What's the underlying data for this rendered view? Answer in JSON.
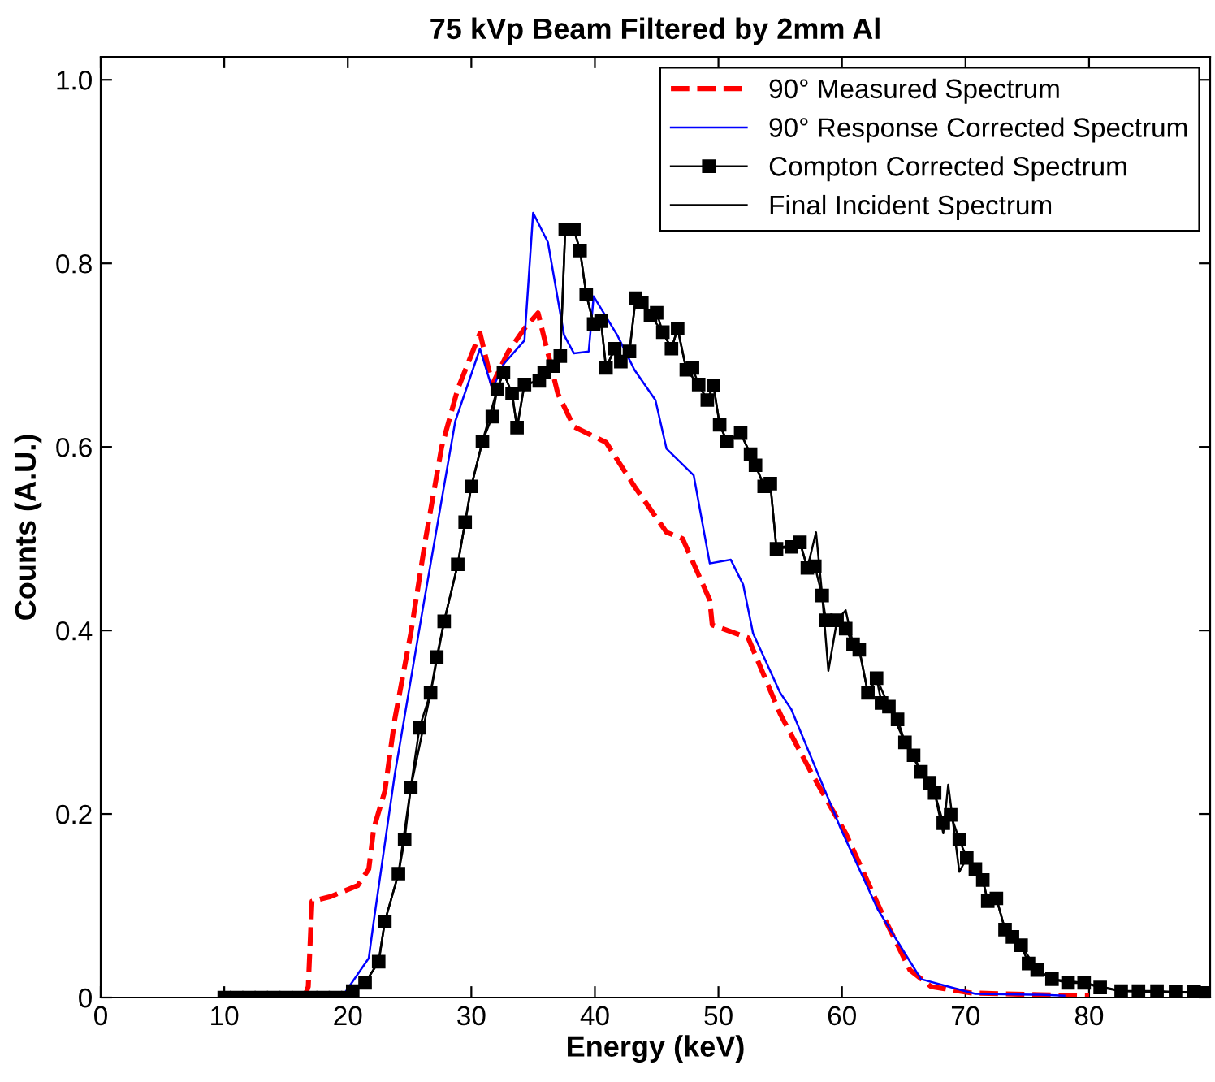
{
  "chart_data": {
    "type": "line",
    "title": "75 kVp Beam Filtered by 2mm Al",
    "xlabel": "Energy (keV)",
    "ylabel": "Counts (A.U.)",
    "xlim": [
      0,
      89.8
    ],
    "ylim": [
      0,
      1.025
    ],
    "xticks": [
      0,
      10,
      20,
      30,
      40,
      50,
      60,
      70,
      80
    ],
    "yticks": [
      0,
      {
        "value": 0.2,
        "label": "0.2"
      },
      {
        "value": 0.4,
        "label": "0.4"
      },
      {
        "value": 0.6,
        "label": "0.6"
      },
      {
        "value": 0.8,
        "label": "0.8"
      },
      {
        "value": 1.0,
        "label": "1.0"
      }
    ],
    "grid": false,
    "legend": "top right",
    "series": [
      {
        "name": "90° Measured Spectrum",
        "color": "#ff0000",
        "line_style": "dashed",
        "marker": "none",
        "x": [
          16.5,
          16.8,
          17.1,
          18.6,
          20.8,
          21.7,
          22.1,
          23.0,
          23.8,
          25.1,
          26.3,
          27.6,
          28.9,
          30.7,
          31.7,
          33.0,
          34.3,
          35.4,
          37.0,
          38.3,
          40.9,
          43.2,
          45.8,
          47.1,
          49.3,
          49.5,
          52.4,
          55.0,
          57.6,
          60.3,
          63.3,
          65.5,
          67.2,
          70.4,
          76.0,
          80.0
        ],
        "values": [
          0,
          0.012,
          0.105,
          0.11,
          0.122,
          0.14,
          0.184,
          0.225,
          0.303,
          0.397,
          0.5,
          0.6,
          0.663,
          0.724,
          0.668,
          0.704,
          0.729,
          0.746,
          0.658,
          0.622,
          0.605,
          0.557,
          0.507,
          0.5,
          0.433,
          0.406,
          0.392,
          0.309,
          0.243,
          0.179,
          0.09,
          0.03,
          0.012,
          0.005,
          0.003,
          0.002
        ]
      },
      {
        "name": "90° Response Corrected Spectrum",
        "color": "#0000ff",
        "line_style": "solid",
        "marker": "none",
        "x": [
          19.5,
          21.7,
          22.1,
          23.8,
          26.0,
          28.7,
          30.7,
          31.7,
          32.6,
          34.3,
          35.0,
          36.2,
          37.5,
          38.3,
          39.5,
          39.9,
          41.8,
          43.2,
          44.9,
          45.8,
          48.0,
          49.3,
          51.0,
          52.0,
          52.8,
          55.0,
          55.9,
          59.9,
          62.9,
          65.1,
          66.4,
          68.6,
          70.8,
          76.0,
          78.0
        ],
        "values": [
          0,
          0.043,
          0.083,
          0.243,
          0.418,
          0.628,
          0.707,
          0.663,
          0.69,
          0.716,
          0.855,
          0.823,
          0.722,
          0.702,
          0.704,
          0.764,
          0.722,
          0.684,
          0.651,
          0.598,
          0.569,
          0.473,
          0.477,
          0.45,
          0.397,
          0.332,
          0.314,
          0.184,
          0.096,
          0.048,
          0.02,
          0.012,
          0.004,
          0.003,
          0.002
        ]
      },
      {
        "name": "Compton Corrected Spectrum",
        "color": "#000000",
        "line_style": "solid",
        "marker": "square",
        "x": [
          10,
          11,
          12,
          13,
          14,
          15,
          16,
          17,
          18,
          19,
          20.0,
          20.4,
          21.4,
          22.5,
          23.0,
          24.1,
          24.6,
          25.1,
          25.8,
          26.7,
          27.2,
          27.8,
          28.9,
          29.5,
          30.0,
          30.9,
          31.7,
          32.1,
          32.6,
          33.3,
          33.7,
          34.3,
          35.5,
          35.9,
          36.6,
          37.2,
          37.6,
          38.3,
          38.8,
          39.3,
          39.9,
          40.5,
          40.9,
          41.6,
          42.1,
          42.8,
          43.3,
          43.8,
          44.5,
          45.0,
          45.5,
          46.2,
          46.7,
          47.4,
          47.9,
          48.4,
          49.1,
          49.6,
          50.1,
          50.7,
          51.8,
          52.6,
          53.0,
          53.7,
          54.2,
          54.7,
          55.9,
          56.6,
          57.2,
          57.8,
          58.4,
          58.7,
          59.6,
          60.3,
          60.9,
          61.4,
          62.1,
          62.8,
          63.2,
          63.8,
          64.5,
          65.1,
          65.8,
          66.4,
          67.1,
          67.5,
          68.2,
          68.8,
          69.5,
          70.1,
          70.8,
          71.4,
          71.8,
          72.5,
          73.2,
          73.8,
          74.5,
          75.1,
          75.8,
          77.0,
          78.3,
          79.6,
          80.9,
          82.6,
          84.0,
          85.5,
          87.0,
          88.5,
          89.5
        ],
        "values": [
          0,
          0,
          0,
          0,
          0,
          0,
          0,
          0,
          0,
          0,
          0,
          0.007,
          0.016,
          0.039,
          0.083,
          0.135,
          0.172,
          0.229,
          0.294,
          0.332,
          0.371,
          0.41,
          0.472,
          0.518,
          0.557,
          0.606,
          0.633,
          0.663,
          0.681,
          0.658,
          0.621,
          0.668,
          0.672,
          0.681,
          0.688,
          0.699,
          0.837,
          0.837,
          0.814,
          0.766,
          0.734,
          0.737,
          0.686,
          0.707,
          0.693,
          0.704,
          0.762,
          0.757,
          0.743,
          0.746,
          0.725,
          0.707,
          0.729,
          0.684,
          0.686,
          0.668,
          0.651,
          0.667,
          0.624,
          0.606,
          0.615,
          0.592,
          0.58,
          0.557,
          0.56,
          0.489,
          0.491,
          0.496,
          0.468,
          0.47,
          0.438,
          0.411,
          0.411,
          0.402,
          0.385,
          0.379,
          0.332,
          0.348,
          0.321,
          0.317,
          0.303,
          0.278,
          0.264,
          0.246,
          0.234,
          0.223,
          0.19,
          0.199,
          0.172,
          0.152,
          0.14,
          0.128,
          0.105,
          0.108,
          0.074,
          0.066,
          0.057,
          0.037,
          0.03,
          0.02,
          0.016,
          0.016,
          0.011,
          0.007,
          0.007,
          0.007,
          0.006,
          0.006,
          0.005
        ]
      },
      {
        "name": "Final Incident Spectrum",
        "color": "#000000",
        "line_style": "solid",
        "marker": "none",
        "x": [
          10,
          20.0,
          20.4,
          21.4,
          22.5,
          23.0,
          24.1,
          25.1,
          26.7,
          27.8,
          28.9,
          30.0,
          30.9,
          32.1,
          32.6,
          33.3,
          33.7,
          34.3,
          35.5,
          37.2,
          37.6,
          38.3,
          38.8,
          39.3,
          39.9,
          40.5,
          40.9,
          41.6,
          42.1,
          42.8,
          43.3,
          44.5,
          45.5,
          46.2,
          46.7,
          47.4,
          48.4,
          49.1,
          49.6,
          50.1,
          50.7,
          51.8,
          53.0,
          53.7,
          54.2,
          54.7,
          56.6,
          57.2,
          57.9,
          58.4,
          58.9,
          59.6,
          60.3,
          60.9,
          61.4,
          62.1,
          62.8,
          63.8,
          65.1,
          66.4,
          67.5,
          68.2,
          68.6,
          69.5,
          70.1,
          71.4,
          71.8,
          72.5,
          73.2,
          74.5,
          75.8,
          77.0,
          79.6,
          82.6,
          85.5,
          89.5
        ],
        "values": [
          0,
          0,
          0.007,
          0.016,
          0.039,
          0.083,
          0.135,
          0.229,
          0.332,
          0.41,
          0.472,
          0.557,
          0.606,
          0.663,
          0.681,
          0.658,
          0.621,
          0.668,
          0.672,
          0.699,
          0.837,
          0.837,
          0.814,
          0.766,
          0.734,
          0.737,
          0.686,
          0.707,
          0.693,
          0.704,
          0.762,
          0.743,
          0.725,
          0.707,
          0.729,
          0.684,
          0.668,
          0.651,
          0.667,
          0.624,
          0.606,
          0.615,
          0.58,
          0.557,
          0.56,
          0.489,
          0.496,
          0.468,
          0.507,
          0.438,
          0.356,
          0.411,
          0.422,
          0.385,
          0.379,
          0.332,
          0.348,
          0.317,
          0.278,
          0.246,
          0.223,
          0.179,
          0.232,
          0.137,
          0.152,
          0.128,
          0.105,
          0.108,
          0.074,
          0.057,
          0.03,
          0.02,
          0.016,
          0.007,
          0.006,
          0.005
        ]
      }
    ]
  }
}
